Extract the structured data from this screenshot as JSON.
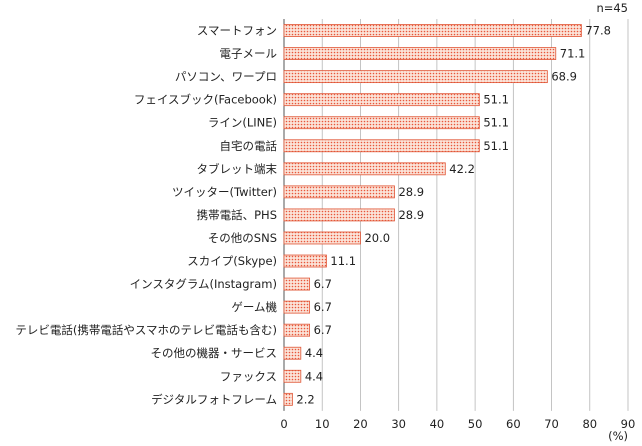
{
  "chart_data": {
    "type": "bar",
    "orientation": "horizontal",
    "sample_note": "n=45",
    "unit_label": "(%)",
    "xlim": [
      0,
      90
    ],
    "ticks": [
      0,
      10,
      20,
      30,
      40,
      50,
      60,
      70,
      80,
      90
    ],
    "grid": true,
    "categories": [
      "スマートフォン",
      "電子メール",
      "パソコン、ワープロ",
      "フェイスブック(Facebook)",
      "ライン(LINE)",
      "自宅の電話",
      "タブレット端末",
      "ツイッター(Twitter)",
      "携帯電話、PHS",
      "その他のSNS",
      "スカイプ(Skype)",
      "インスタグラム(Instagram)",
      "ゲーム機",
      "テレビ電話(携帯電話やスマホのテレビ電話も含む)",
      "その他の機器・サービス",
      "ファックス",
      "デジタルフォトフレーム"
    ],
    "values": [
      77.8,
      71.1,
      68.9,
      51.1,
      51.1,
      51.1,
      42.2,
      28.9,
      28.9,
      20.0,
      11.1,
      6.7,
      6.7,
      6.7,
      4.4,
      4.4,
      2.2
    ],
    "value_labels": [
      "77.8",
      "71.1",
      "68.9",
      "51.1",
      "51.1",
      "51.1",
      "42.2",
      "28.9",
      "28.9",
      "20.0",
      "11.1",
      "6.7",
      "6.7",
      "6.7",
      "4.4",
      "4.4",
      "2.2"
    ],
    "colors": {
      "bar_fill": "#fbe3d8",
      "bar_dots": "#e8563a",
      "bar_stroke": "#e05535",
      "grid": "#b5b5b5",
      "axis": "#555555"
    }
  }
}
